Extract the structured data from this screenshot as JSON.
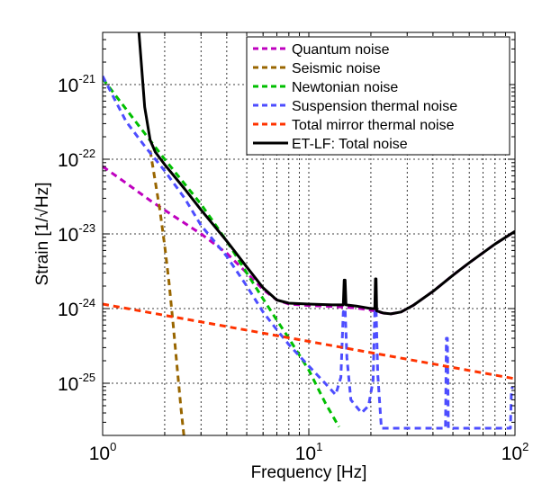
{
  "chart_data": {
    "type": "line",
    "xlabel": "Frequency [Hz]",
    "ylabel": "Strain [1/√Hz]",
    "xscale": "log",
    "yscale": "log",
    "xlim": [
      1,
      100
    ],
    "ylim": [
      2e-26,
      5e-21
    ],
    "grid": true,
    "legend_position": "top-right",
    "x_ticks": [
      {
        "value": 1,
        "base": "10",
        "exp": "0"
      },
      {
        "value": 10,
        "base": "10",
        "exp": "1"
      },
      {
        "value": 100,
        "base": "10",
        "exp": "2"
      }
    ],
    "y_ticks": [
      {
        "value": 1e-25,
        "base": "10",
        "exp": "-25"
      },
      {
        "value": 1e-24,
        "base": "10",
        "exp": "-24"
      },
      {
        "value": 1e-23,
        "base": "10",
        "exp": "-23"
      },
      {
        "value": 1e-22,
        "base": "10",
        "exp": "-22"
      },
      {
        "value": 1e-21,
        "base": "10",
        "exp": "-21"
      }
    ],
    "series": [
      {
        "name": "Quantum noise",
        "color": "#bf00bf",
        "dash": true,
        "width": 3,
        "points": [
          [
            1,
            8e-23
          ],
          [
            1.3,
            4.8e-23
          ],
          [
            1.7,
            2.8e-23
          ],
          [
            2.2,
            1.75e-23
          ],
          [
            3,
            1e-23
          ],
          [
            4,
            5.5e-24
          ],
          [
            5,
            3e-24
          ],
          [
            6,
            1.8e-24
          ],
          [
            7,
            1.3e-24
          ],
          [
            8,
            1.15e-24
          ],
          [
            10,
            1.1e-24
          ],
          [
            13,
            1.07e-24
          ],
          [
            17,
            1.02e-24
          ],
          [
            20,
            9.5e-25
          ],
          [
            23,
            8.7e-25
          ],
          [
            25,
            8.5e-25
          ],
          [
            28,
            9e-25
          ],
          [
            32,
            1.1e-24
          ],
          [
            40,
            1.7e-24
          ],
          [
            50,
            2.8e-24
          ],
          [
            60,
            4.1e-24
          ],
          [
            70,
            5.6e-24
          ],
          [
            80,
            7.3e-24
          ],
          [
            90,
            9e-24
          ],
          [
            100,
            1.08e-23
          ]
        ]
      },
      {
        "name": "Seismic noise",
        "color": "#996600",
        "dash": true,
        "width": 3,
        "points": [
          [
            1.7,
            1.3e-22
          ],
          [
            1.8,
            5e-23
          ],
          [
            1.9,
            2e-23
          ],
          [
            2.0,
            7e-24
          ],
          [
            2.1,
            2.2e-24
          ],
          [
            2.2,
            6e-25
          ],
          [
            2.3,
            1.6e-25
          ],
          [
            2.4,
            4.5e-26
          ],
          [
            2.5,
            1.6e-26
          ]
        ]
      },
      {
        "name": "Newtonian noise",
        "color": "#00bf00",
        "dash": true,
        "width": 3,
        "points": [
          [
            1,
            1.2e-21
          ],
          [
            1.5,
            2.8e-22
          ],
          [
            2,
            1e-22
          ],
          [
            3,
            2.5e-23
          ],
          [
            4,
            8e-24
          ],
          [
            5,
            3e-24
          ],
          [
            6,
            1.35e-24
          ],
          [
            7,
            7e-25
          ],
          [
            8,
            4e-25
          ],
          [
            10,
            1.5e-25
          ],
          [
            12,
            5.5e-26
          ],
          [
            14,
            2.6e-26
          ]
        ]
      },
      {
        "name": "Suspension thermal noise",
        "color": "#4d4dff",
        "dash": true,
        "width": 3,
        "points": [
          [
            1,
            1.3e-21
          ],
          [
            1.3,
            3.2e-22
          ],
          [
            1.6,
            1.5e-22
          ],
          [
            2,
            7e-23
          ],
          [
            2.5,
            3e-23
          ],
          [
            3,
            1.3e-23
          ],
          [
            4,
            5e-24
          ],
          [
            5,
            2e-24
          ],
          [
            6,
            9e-25
          ],
          [
            7,
            5.2e-25
          ],
          [
            8,
            3.3e-25
          ],
          [
            10,
            1.7e-25
          ],
          [
            12,
            1e-25
          ],
          [
            13.5,
            7e-26
          ],
          [
            14.3,
            1.2e-25
          ],
          [
            14.7,
            9e-25
          ],
          [
            15.0,
            1e-24
          ],
          [
            15.3,
            2.2e-25
          ],
          [
            16,
            6e-26
          ],
          [
            18,
            4e-26
          ],
          [
            19.5,
            5e-26
          ],
          [
            20.5,
            1.1e-25
          ],
          [
            20.9,
            9e-25
          ],
          [
            21.2,
            1e-24
          ],
          [
            21.6,
            1.3e-25
          ],
          [
            22.5,
            2.5e-26
          ],
          [
            46,
            2.5e-26
          ],
          [
            46.5,
            4e-25
          ],
          [
            47,
            4e-25
          ],
          [
            47.5,
            2.5e-26
          ],
          [
            95,
            2.5e-26
          ],
          [
            96,
            7e-26
          ],
          [
            97,
            9e-26
          ]
        ]
      },
      {
        "name": "Total mirror thermal noise",
        "color": "#ff3300",
        "dash": true,
        "width": 3,
        "points": [
          [
            1,
            1.15e-24
          ],
          [
            100,
            1.15e-25
          ]
        ]
      },
      {
        "name": "ET-LF: Total noise",
        "color": "#000000",
        "dash": false,
        "width": 3,
        "points": [
          [
            1.5,
            5e-21
          ],
          [
            1.6,
            5e-22
          ],
          [
            1.7,
            1.8e-22
          ],
          [
            1.8,
            1.25e-22
          ],
          [
            2,
            8.5e-23
          ],
          [
            2.5,
            4e-23
          ],
          [
            3,
            2.1e-23
          ],
          [
            4,
            8e-24
          ],
          [
            5,
            3.6e-24
          ],
          [
            6,
            1.9e-24
          ],
          [
            7,
            1.3e-24
          ],
          [
            8,
            1.18e-24
          ],
          [
            10,
            1.15e-24
          ],
          [
            13,
            1.12e-24
          ],
          [
            14.7,
            1.12e-24
          ],
          [
            14.85,
            2.4e-24
          ],
          [
            15.0,
            2.4e-24
          ],
          [
            15.15,
            1.12e-24
          ],
          [
            17,
            1.08e-24
          ],
          [
            20,
            1e-24
          ],
          [
            20.9,
            1e-24
          ],
          [
            21.05,
            2.5e-24
          ],
          [
            21.2,
            2.5e-24
          ],
          [
            21.35,
            9.3e-25
          ],
          [
            23,
            8.7e-25
          ],
          [
            25,
            8.5e-25
          ],
          [
            28,
            9e-25
          ],
          [
            32,
            1.1e-24
          ],
          [
            40,
            1.7e-24
          ],
          [
            50,
            2.8e-24
          ],
          [
            60,
            4.1e-24
          ],
          [
            70,
            5.6e-24
          ],
          [
            80,
            7.3e-24
          ],
          [
            90,
            9e-24
          ],
          [
            100,
            1.08e-23
          ]
        ]
      }
    ]
  }
}
